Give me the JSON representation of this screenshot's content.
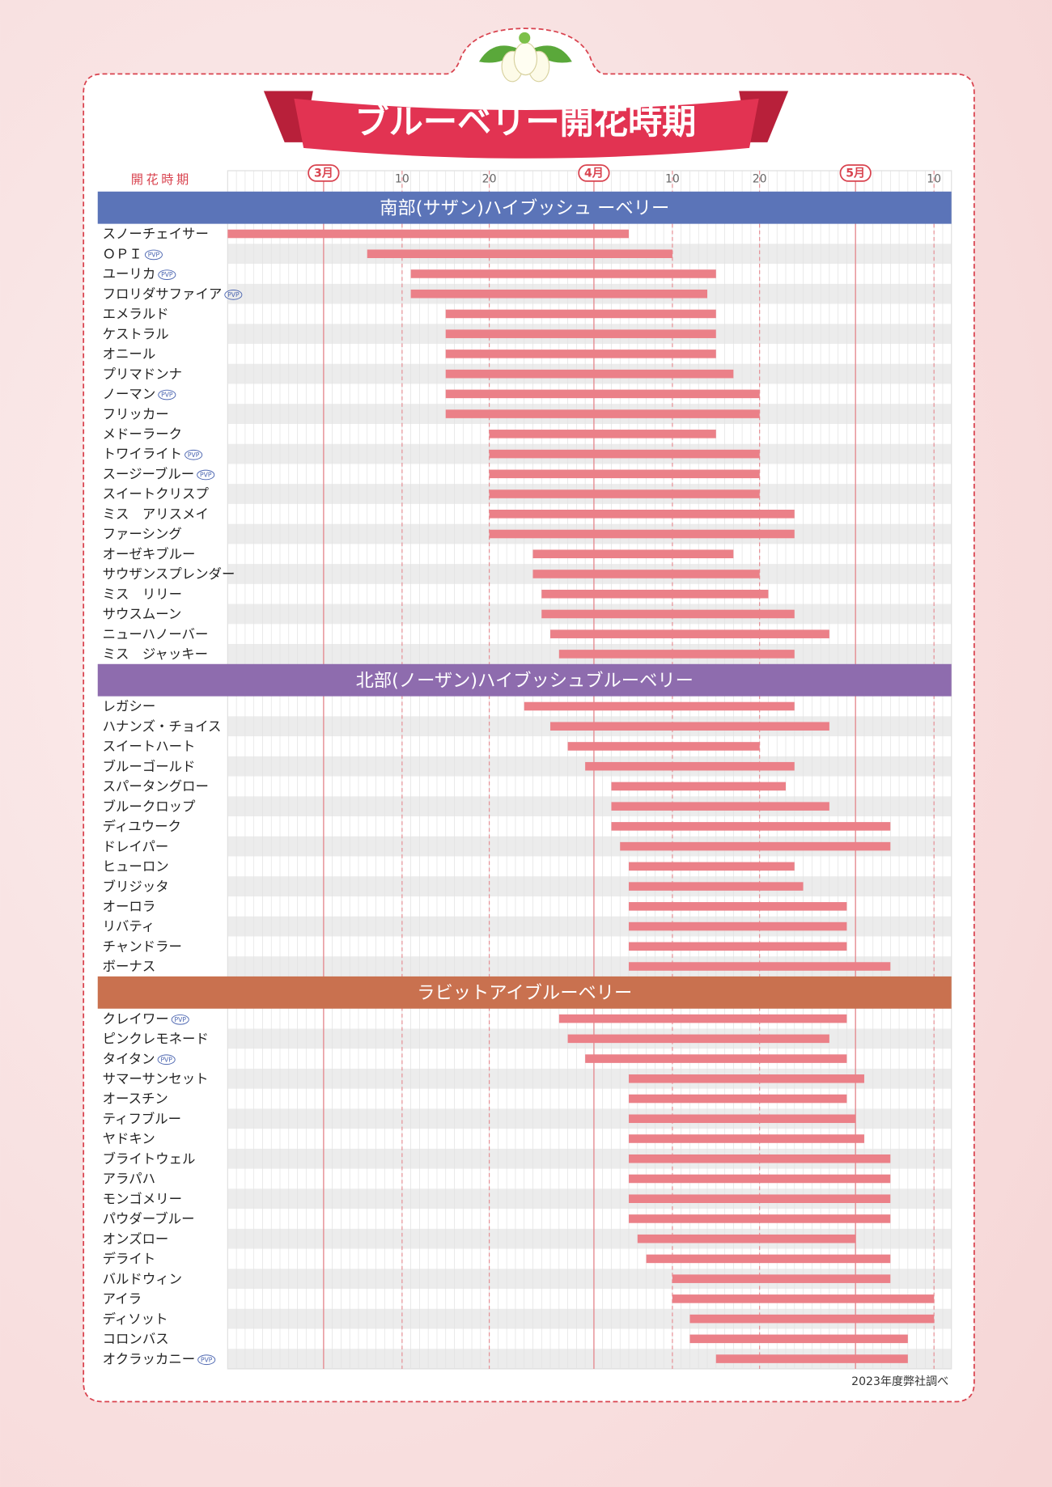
{
  "chart_data": {
    "type": "gantt",
    "title": "ブルーベリー開花時期",
    "axis_label": "開花時期",
    "note": "2023年度弊社調べ",
    "xlim": [
      -10,
      73
    ],
    "xticks": [
      {
        "value": 1,
        "label": "3月"
      },
      {
        "value": 10,
        "label": "10"
      },
      {
        "value": 20,
        "label": "20"
      },
      {
        "value": 32,
        "label": "4月"
      },
      {
        "value": 41,
        "label": "10"
      },
      {
        "value": 51,
        "label": "20"
      },
      {
        "value": 62,
        "label": "5月"
      },
      {
        "value": 71,
        "label": "10"
      }
    ],
    "minor_grid": true,
    "bar_color": "#eb8088",
    "groups": [
      {
        "name": "南部(サザン)ハイブッシュ ーベリー",
        "color": "#5b74b8",
        "items": [
          {
            "name": "スノーチェイサー",
            "start": -10,
            "end": 36
          },
          {
            "name": "ＯＰＩ",
            "badge": "PVP",
            "start": 6,
            "end": 41
          },
          {
            "name": "ユーリカ",
            "badge": "PVP",
            "start": 11,
            "end": 46
          },
          {
            "name": "フロリダサファイア",
            "badge": "PVP",
            "start": 11,
            "end": 45
          },
          {
            "name": "エメラルド",
            "start": 15,
            "end": 46
          },
          {
            "name": "ケストラル",
            "start": 15,
            "end": 46
          },
          {
            "name": "オニール",
            "start": 15,
            "end": 46
          },
          {
            "name": "プリマドンナ",
            "start": 15,
            "end": 48
          },
          {
            "name": "ノーマン",
            "badge": "PVP",
            "start": 15,
            "end": 51
          },
          {
            "name": "フリッカー",
            "start": 15,
            "end": 51
          },
          {
            "name": "メドーラーク",
            "start": 20,
            "end": 46
          },
          {
            "name": "トワイライト",
            "badge": "PVP",
            "start": 20,
            "end": 51
          },
          {
            "name": "スージーブルー",
            "badge": "PVP",
            "start": 20,
            "end": 51
          },
          {
            "name": "スイートクリスプ",
            "start": 20,
            "end": 51
          },
          {
            "name": "ミス　アリスメイ",
            "start": 20,
            "end": 55
          },
          {
            "name": "ファーシング",
            "start": 20,
            "end": 55
          },
          {
            "name": "オーゼキブルー",
            "start": 25,
            "end": 48
          },
          {
            "name": "サウザンスプレンダー",
            "start": 25,
            "end": 51
          },
          {
            "name": "ミス　リリー",
            "start": 26,
            "end": 52
          },
          {
            "name": "サウスムーン",
            "start": 26,
            "end": 55
          },
          {
            "name": "ニューハノーバー",
            "start": 27,
            "end": 59
          },
          {
            "name": "ミス　ジャッキー",
            "start": 28,
            "end": 55
          }
        ]
      },
      {
        "name": "北部(ノーザン)ハイブッシュブルーベリー",
        "color": "#8e6cae",
        "items": [
          {
            "name": "レガシー",
            "start": 24,
            "end": 55
          },
          {
            "name": "ハナンズ・チョイス",
            "start": 27,
            "end": 59
          },
          {
            "name": "スイートハート",
            "start": 29,
            "end": 51
          },
          {
            "name": "ブルーゴールド",
            "start": 31,
            "end": 55
          },
          {
            "name": "スパータングロー",
            "start": 34,
            "end": 54
          },
          {
            "name": "ブルークロップ",
            "start": 34,
            "end": 59
          },
          {
            "name": "ディユウーク",
            "start": 34,
            "end": 66
          },
          {
            "name": "ドレイパー",
            "start": 35,
            "end": 66
          },
          {
            "name": "ヒューロン",
            "start": 36,
            "end": 55
          },
          {
            "name": "ブリジッタ",
            "start": 36,
            "end": 56
          },
          {
            "name": "オーロラ",
            "start": 36,
            "end": 61
          },
          {
            "name": "リバティ",
            "start": 36,
            "end": 61
          },
          {
            "name": "チャンドラー",
            "start": 36,
            "end": 61
          },
          {
            "name": "ボーナス",
            "start": 36,
            "end": 66
          }
        ]
      },
      {
        "name": "ラビットアイブルーベリー",
        "color": "#c9714f",
        "items": [
          {
            "name": "クレイワー",
            "badge": "PVP",
            "start": 28,
            "end": 61
          },
          {
            "name": "ピンクレモネード",
            "start": 29,
            "end": 59
          },
          {
            "name": "タイタン",
            "badge": "PVP",
            "start": 31,
            "end": 61
          },
          {
            "name": "サマーサンセット",
            "start": 36,
            "end": 63
          },
          {
            "name": "オースチン",
            "start": 36,
            "end": 61
          },
          {
            "name": "ティフブルー",
            "start": 36,
            "end": 62
          },
          {
            "name": "ヤドキン",
            "start": 36,
            "end": 63
          },
          {
            "name": "ブライトウェル",
            "start": 36,
            "end": 66
          },
          {
            "name": "アラパハ",
            "start": 36,
            "end": 66
          },
          {
            "name": "モンゴメリー",
            "start": 36,
            "end": 66
          },
          {
            "name": "パウダーブルー",
            "start": 36,
            "end": 66
          },
          {
            "name": "オンズロー",
            "start": 37,
            "end": 62
          },
          {
            "name": "デライト",
            "start": 38,
            "end": 66
          },
          {
            "name": "バルドウィン",
            "start": 41,
            "end": 66
          },
          {
            "name": "アイラ",
            "start": 41,
            "end": 71
          },
          {
            "name": "ディソット",
            "start": 43,
            "end": 71
          },
          {
            "name": "コロンバス",
            "start": 43,
            "end": 68
          },
          {
            "name": "オクラッカニー",
            "badge": "PVP",
            "start": 46,
            "end": 68
          }
        ]
      }
    ]
  }
}
